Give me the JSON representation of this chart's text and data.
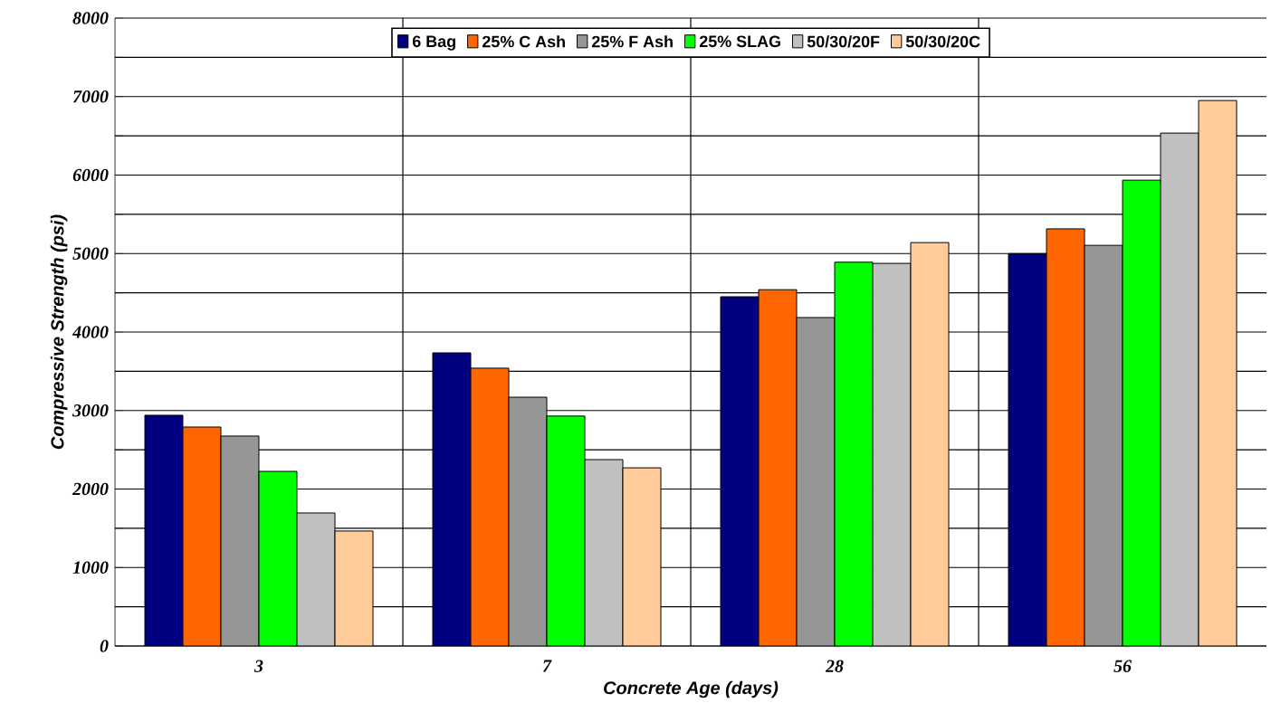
{
  "chart_data": {
    "type": "bar",
    "xlabel": "Concrete Age (days)",
    "ylabel": "Compressive Strength (psi)",
    "categories": [
      "3",
      "7",
      "28",
      "56"
    ],
    "series": [
      {
        "name": "6 Bag",
        "color": "#000080",
        "values": [
          2940,
          3735,
          4450,
          5000
        ]
      },
      {
        "name": "25% C Ash",
        "color": "#ff6600",
        "values": [
          2790,
          3540,
          4540,
          5315
        ]
      },
      {
        "name": "25% F Ash",
        "color": "#969696",
        "values": [
          2675,
          3170,
          4185,
          5105
        ]
      },
      {
        "name": "25% SLAG",
        "color": "#00ff00",
        "values": [
          2225,
          2930,
          4890,
          5935
        ]
      },
      {
        "name": "50/30/20F",
        "color": "#c0c0c0",
        "values": [
          1695,
          2375,
          4875,
          6535
        ]
      },
      {
        "name": "50/30/20C",
        "color": "#ffcc99",
        "values": [
          1465,
          2270,
          5140,
          6950
        ]
      }
    ],
    "ylim": [
      0,
      8000
    ],
    "yticks": [
      0,
      {
        "value": 500,
        "label": null
      },
      1000,
      {
        "value": 1500,
        "label": null
      },
      2000,
      {
        "value": 2500,
        "label": null
      },
      3000,
      {
        "value": 3500,
        "label": null
      },
      4000,
      {
        "value": 4500,
        "label": null
      },
      5000,
      {
        "value": 5500,
        "label": null
      },
      6000,
      {
        "value": 6500,
        "label": null
      },
      7000,
      {
        "value": 7500,
        "label": null
      },
      8000
    ],
    "grid": true,
    "legend": "top"
  }
}
